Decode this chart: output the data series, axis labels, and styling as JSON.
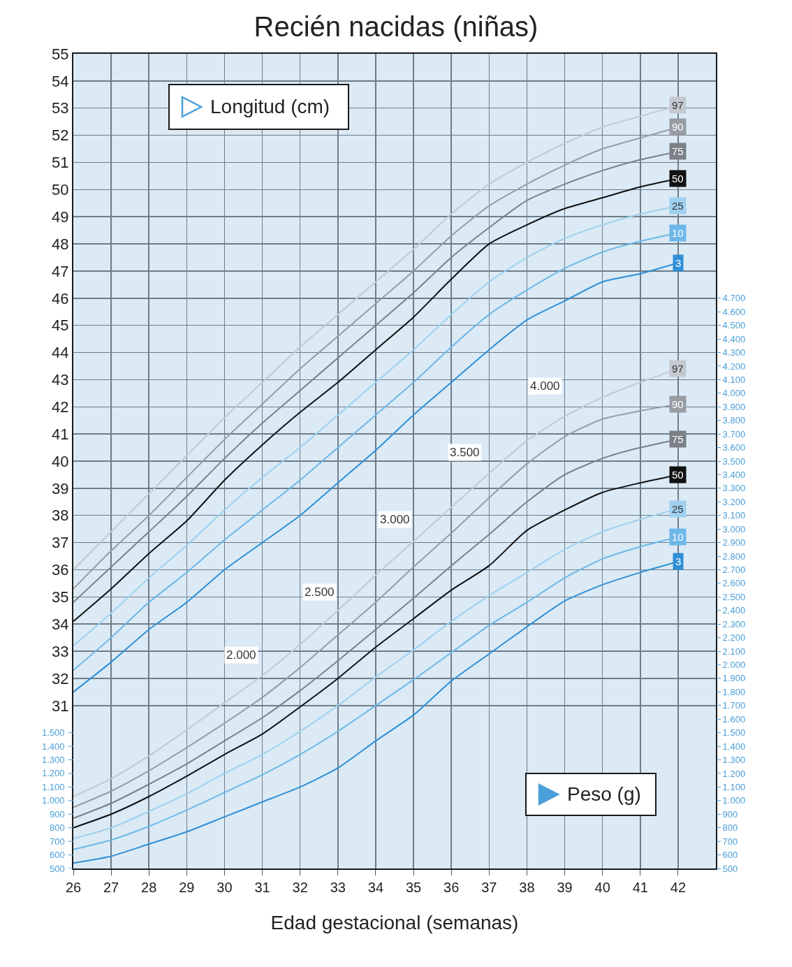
{
  "chart_data": {
    "type": "line",
    "title": "Recién nacidas (niñas)",
    "xlabel": "Edad gestacional (semanas)",
    "x": [
      26,
      27,
      28,
      29,
      30,
      31,
      32,
      33,
      34,
      35,
      36,
      37,
      38,
      39,
      40,
      41,
      42
    ],
    "xlim": [
      26,
      43
    ],
    "xticks": [
      26,
      27,
      28,
      29,
      30,
      31,
      32,
      33,
      34,
      35,
      36,
      37,
      38,
      39,
      40,
      41,
      42
    ],
    "ylim": [
      25,
      55
    ],
    "yticks": [
      31,
      32,
      33,
      34,
      35,
      36,
      37,
      38,
      39,
      40,
      41,
      42,
      43,
      44,
      45,
      46,
      47,
      48,
      49,
      50,
      51,
      52,
      53,
      54,
      55
    ],
    "y2lim": [
      500,
      6500
    ],
    "y2ticks": [
      {
        "value": 500,
        "label": "500"
      },
      {
        "value": 600,
        "label": "600"
      },
      {
        "value": 700,
        "label": "700"
      },
      {
        "value": 800,
        "label": "800"
      },
      {
        "value": 900,
        "label": "900"
      },
      {
        "value": 1000,
        "label": "1.000"
      },
      {
        "value": 1100,
        "label": "1.100"
      },
      {
        "value": 1200,
        "label": "1.200"
      },
      {
        "value": 1300,
        "label": "1.300"
      },
      {
        "value": 1400,
        "label": "1.400"
      },
      {
        "value": 1500,
        "label": "1.500"
      },
      {
        "value": 1600,
        "label": "1.600"
      },
      {
        "value": 1700,
        "label": "1.700"
      },
      {
        "value": 1800,
        "label": "1.800"
      },
      {
        "value": 1900,
        "label": "1.900"
      },
      {
        "value": 2000,
        "label": "2.000"
      },
      {
        "value": 2100,
        "label": "2.100"
      },
      {
        "value": 2200,
        "label": "2.200"
      },
      {
        "value": 2300,
        "label": "2.300"
      },
      {
        "value": 2400,
        "label": "2.400"
      },
      {
        "value": 2500,
        "label": "2.500"
      },
      {
        "value": 2600,
        "label": "2.600"
      },
      {
        "value": 2700,
        "label": "2.700"
      },
      {
        "value": 2800,
        "label": "2.800"
      },
      {
        "value": 2900,
        "label": "2.900"
      },
      {
        "value": 3000,
        "label": "3.000"
      },
      {
        "value": 3100,
        "label": "3.100"
      },
      {
        "value": 3200,
        "label": "3.200"
      },
      {
        "value": 3300,
        "label": "3.300"
      },
      {
        "value": 3400,
        "label": "3.400"
      },
      {
        "value": 3500,
        "label": "3.500"
      },
      {
        "value": 3600,
        "label": "3.600"
      },
      {
        "value": 3700,
        "label": "3.700"
      },
      {
        "value": 3800,
        "label": "3.800"
      },
      {
        "value": 3900,
        "label": "3.900"
      },
      {
        "value": 4000,
        "label": "4.000"
      },
      {
        "value": 4100,
        "label": "4.100"
      },
      {
        "value": 4200,
        "label": "4.200"
      },
      {
        "value": 4300,
        "label": "4.300"
      },
      {
        "value": 4400,
        "label": "4.400"
      },
      {
        "value": 4500,
        "label": "4.500"
      },
      {
        "value": 4600,
        "label": "4.600"
      },
      {
        "value": 4700,
        "label": "4.700"
      }
    ],
    "y3lim": [
      500,
      6500
    ],
    "y3ticks": [
      {
        "value": 500,
        "label": "500"
      },
      {
        "value": 600,
        "label": "600"
      },
      {
        "value": 700,
        "label": "700"
      },
      {
        "value": 800,
        "label": "800"
      },
      {
        "value": 900,
        "label": "900"
      },
      {
        "value": 1000,
        "label": "1.000"
      },
      {
        "value": 1100,
        "label": "1.100"
      },
      {
        "value": 1200,
        "label": "1.200"
      },
      {
        "value": 1300,
        "label": "1.300"
      },
      {
        "value": 1400,
        "label": "1.400"
      },
      {
        "value": 1500,
        "label": "1.500"
      }
    ],
    "grid": true,
    "series": [
      {
        "name": "97",
        "color": "#c3c9cf",
        "values": [
          36.0,
          37.4,
          38.8,
          40.2,
          41.6,
          42.9,
          44.2,
          45.4,
          46.6,
          47.8,
          49.1,
          50.2,
          51.0,
          51.7,
          52.3,
          52.7,
          53.1
        ]
      },
      {
        "name": "90",
        "color": "#979da3",
        "values": [
          35.3,
          36.7,
          38.0,
          39.4,
          40.8,
          42.1,
          43.4,
          44.6,
          45.8,
          47.0,
          48.3,
          49.4,
          50.2,
          50.9,
          51.5,
          51.9,
          52.3
        ]
      },
      {
        "name": "75",
        "color": "#7b8187",
        "values": [
          34.8,
          36.1,
          37.4,
          38.7,
          40.1,
          41.4,
          42.6,
          43.8,
          45.0,
          46.2,
          47.5,
          48.6,
          49.6,
          50.2,
          50.7,
          51.1,
          51.4
        ]
      },
      {
        "name": "50",
        "color": "#111111",
        "values": [
          34.1,
          35.3,
          36.6,
          37.8,
          39.3,
          40.6,
          41.8,
          42.9,
          44.1,
          45.3,
          46.7,
          48.0,
          48.7,
          49.3,
          49.7,
          50.1,
          50.4
        ]
      },
      {
        "name": "25",
        "color": "#9fd0ef",
        "values": [
          33.2,
          34.4,
          35.7,
          36.9,
          38.2,
          39.4,
          40.5,
          41.7,
          42.9,
          44.1,
          45.4,
          46.6,
          47.5,
          48.2,
          48.7,
          49.1,
          49.4
        ]
      },
      {
        "name": "10",
        "color": "#6db8e8",
        "values": [
          32.3,
          33.5,
          34.8,
          35.9,
          37.1,
          38.2,
          39.3,
          40.5,
          41.7,
          42.9,
          44.2,
          45.4,
          46.3,
          47.1,
          47.7,
          48.1,
          48.4
        ]
      },
      {
        "name": "3",
        "color": "#2f8fd6",
        "values": [
          31.5,
          32.6,
          33.8,
          34.8,
          36.0,
          37.0,
          38.0,
          39.2,
          40.4,
          41.7,
          42.9,
          44.1,
          45.2,
          45.9,
          46.6,
          46.9,
          47.3
        ]
      },
      {
        "name": "97",
        "color": "#c3c9cf",
        "axis": "y2",
        "values": [
          1030,
          1160,
          1330,
          1520,
          1720,
          1920,
          2150,
          2400,
          2660,
          2910,
          3160,
          3410,
          3650,
          3830,
          3970,
          4080,
          4180
        ]
      },
      {
        "name": "90",
        "color": "#979da3",
        "axis": "y2",
        "values": [
          950,
          1070,
          1220,
          1390,
          1570,
          1760,
          1980,
          2220,
          2460,
          2720,
          2970,
          3230,
          3480,
          3680,
          3810,
          3870,
          3920
        ]
      },
      {
        "name": "75",
        "color": "#7b8187",
        "axis": "y2",
        "values": [
          870,
          980,
          1120,
          1270,
          1440,
          1610,
          1810,
          2030,
          2260,
          2490,
          2730,
          2960,
          3200,
          3400,
          3520,
          3600,
          3660
        ]
      },
      {
        "name": "50",
        "color": "#111111",
        "axis": "y2",
        "values": [
          800,
          900,
          1030,
          1180,
          1340,
          1490,
          1690,
          1900,
          2130,
          2340,
          2550,
          2730,
          2990,
          3140,
          3270,
          3340,
          3400
        ]
      },
      {
        "name": "25",
        "color": "#9fd0ef",
        "axis": "y2",
        "values": [
          720,
          800,
          920,
          1050,
          1200,
          1340,
          1510,
          1700,
          1910,
          2110,
          2320,
          2510,
          2680,
          2850,
          2980,
          3070,
          3150
        ]
      },
      {
        "name": "10",
        "color": "#6db8e8",
        "axis": "y2",
        "values": [
          640,
          710,
          810,
          930,
          1060,
          1190,
          1340,
          1510,
          1700,
          1890,
          2090,
          2290,
          2460,
          2640,
          2780,
          2870,
          2940
        ]
      },
      {
        "name": "3",
        "color": "#2f8fd6",
        "axis": "y2",
        "values": [
          540,
          590,
          680,
          770,
          880,
          990,
          1100,
          1240,
          1440,
          1630,
          1880,
          2080,
          2280,
          2470,
          2590,
          2680,
          2760
        ]
      }
    ],
    "annotations": [
      "Longitud (cm)",
      "Peso (g)",
      "2.000",
      "2.500",
      "3.000",
      "3.500",
      "4.000"
    ]
  }
}
